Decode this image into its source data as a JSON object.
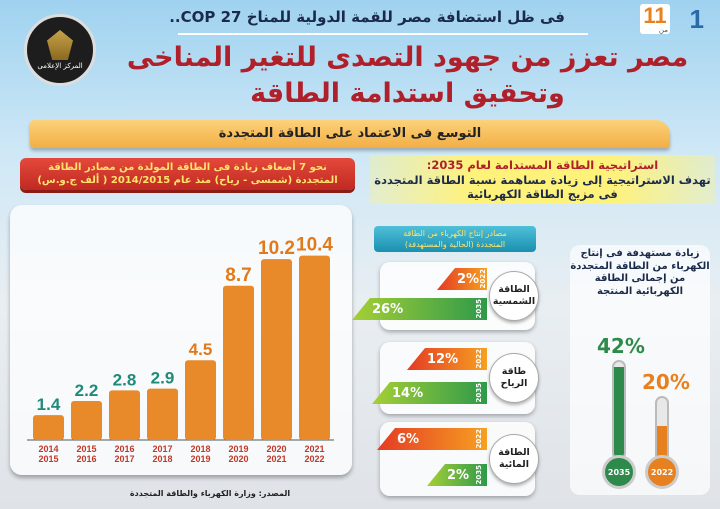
{
  "header": {
    "page_number": "1",
    "page_total": "11",
    "page_of": "من",
    "subtitle": "فى ظل استضافة مصر للقمة الدولية للمناخ COP 27..",
    "title_line1": "مصر تعزز من جهود التصدى للتغير المناخى",
    "title_line2": "وتحقيق استدامة الطاقة",
    "logo_caption": "المركز الإعلامى"
  },
  "banner": "التوسع فى الاعتماد على الطاقة المتجددة",
  "strategy": {
    "heading": "استراتيجية الطاقة المستدامة لعام 2035:",
    "body_line1": "تهدف الاستراتيجية إلى زيادة مساهمة نسبة الطاقة المتجددة",
    "body_line2": "فى مزيج الطاقة الكهربائية"
  },
  "ribbon": {
    "line1": "نحو 7 أضعاف زيادة فى الطاقة المولدة من مصادر الطاقة",
    "line2": "المتجددة (شمسى - رياح) منذ عام 2014/2015 ( ألف ج.و.س)"
  },
  "chart_data": {
    "type": "bar",
    "title": "نحو 7 أضعاف زيادة فى الطاقة المولدة من مصادر الطاقة المتجددة (شمسى - رياح) منذ عام 2014/2015 ( ألف ج.و.س)",
    "categories": [
      [
        "2014",
        "2015"
      ],
      [
        "2015",
        "2016"
      ],
      [
        "2016",
        "2017"
      ],
      [
        "2017",
        "2018"
      ],
      [
        "2018",
        "2019"
      ],
      [
        "2019",
        "2020"
      ],
      [
        "2020",
        "2021"
      ],
      [
        "2021",
        "2022"
      ]
    ],
    "values": [
      1.4,
      2.2,
      2.8,
      2.9,
      4.5,
      8.7,
      10.2,
      10.4
    ],
    "ylim": [
      0,
      11
    ],
    "unit": "ألف ج.و.س",
    "grid": false,
    "colors": {
      "bar": "#e8892a",
      "label_teal": "#1f8a7a",
      "label_orange": "#e07a1a",
      "tick": "#c0392b"
    }
  },
  "mix": {
    "header_line1": "مصادر إنتاج الكهرباء من الطاقة",
    "header_line2": "المتجددة (الحالية والمستهدفة)",
    "sources": [
      {
        "name_line1": "الطاقة",
        "name_line2": "الشمسية",
        "y2022": {
          "year": "2022",
          "value": "2%"
        },
        "y2035": {
          "year": "2035",
          "value": "26%"
        }
      },
      {
        "name_line1": "طاقة",
        "name_line2": "الرياح",
        "y2022": {
          "year": "2022",
          "value": "12%"
        },
        "y2035": {
          "year": "2035",
          "value": "14%"
        }
      },
      {
        "name_line1": "الطاقة",
        "name_line2": "المائية",
        "y2022": {
          "year": "2022",
          "value": "6%"
        },
        "y2035": {
          "year": "2035",
          "value": "2%"
        }
      }
    ]
  },
  "target": {
    "text": "زيادة مستهدفة فى إنتاج الكهرباء من الطاقة المتجددة من إجمالى الطاقة الكهربائية المنتجة",
    "v2035": "42%",
    "v2022": "20%",
    "y2035": "2035",
    "y2022": "2022",
    "fill2035": 0.42,
    "fill2022": 0.2
  },
  "source": "المصدر: وزارة الكهرباء والطاقة المتجددة"
}
